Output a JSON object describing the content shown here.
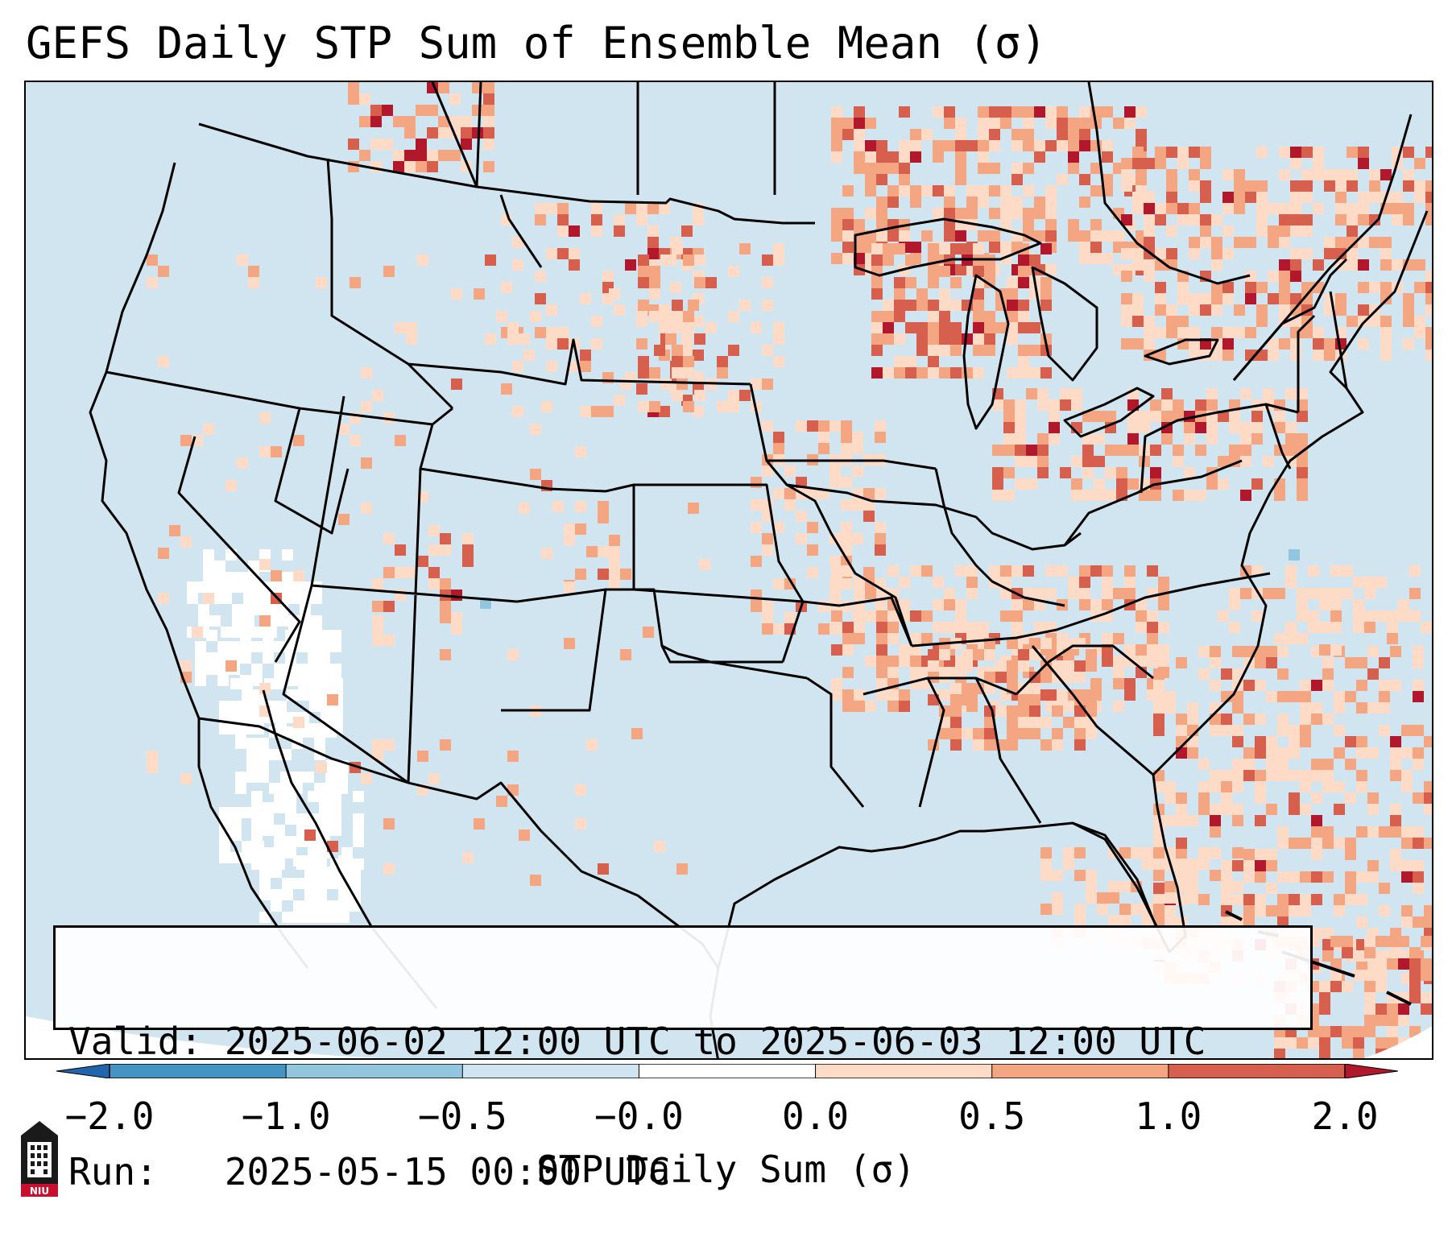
{
  "title": "GEFS Daily STP Sum of Ensemble Mean (σ)",
  "info": {
    "valid_line": "Valid: 2025-06-02 12:00 UTC to 2025-06-03 12:00 UTC",
    "run_line": "Run:   2025-05-15 00:00 UTC"
  },
  "colorbar": {
    "label": "STP Daily Sum (σ)",
    "ticks": [
      "−2.0",
      "−1.0",
      "−0.5",
      "−0.0",
      "0.0",
      "0.5",
      "1.0",
      "2.0"
    ],
    "colors": [
      "#2166ac",
      "#4393c3",
      "#92c5de",
      "#d1e5f0",
      "#ffffff",
      "#fddbc7",
      "#f4a582",
      "#d6604d",
      "#b2182b"
    ]
  },
  "map": {
    "background_color": "#d1e5f0",
    "boundary_color": "#000000",
    "field_colors": {
      "light": "#fddbc7",
      "medium": "#f4a582",
      "strong": "#d6604d",
      "extreme": "#b2182b",
      "negative": "#92c5de",
      "missing": "#ffffff"
    }
  },
  "logo": {
    "text": "NIU",
    "icon": "niu-logo-icon"
  }
}
